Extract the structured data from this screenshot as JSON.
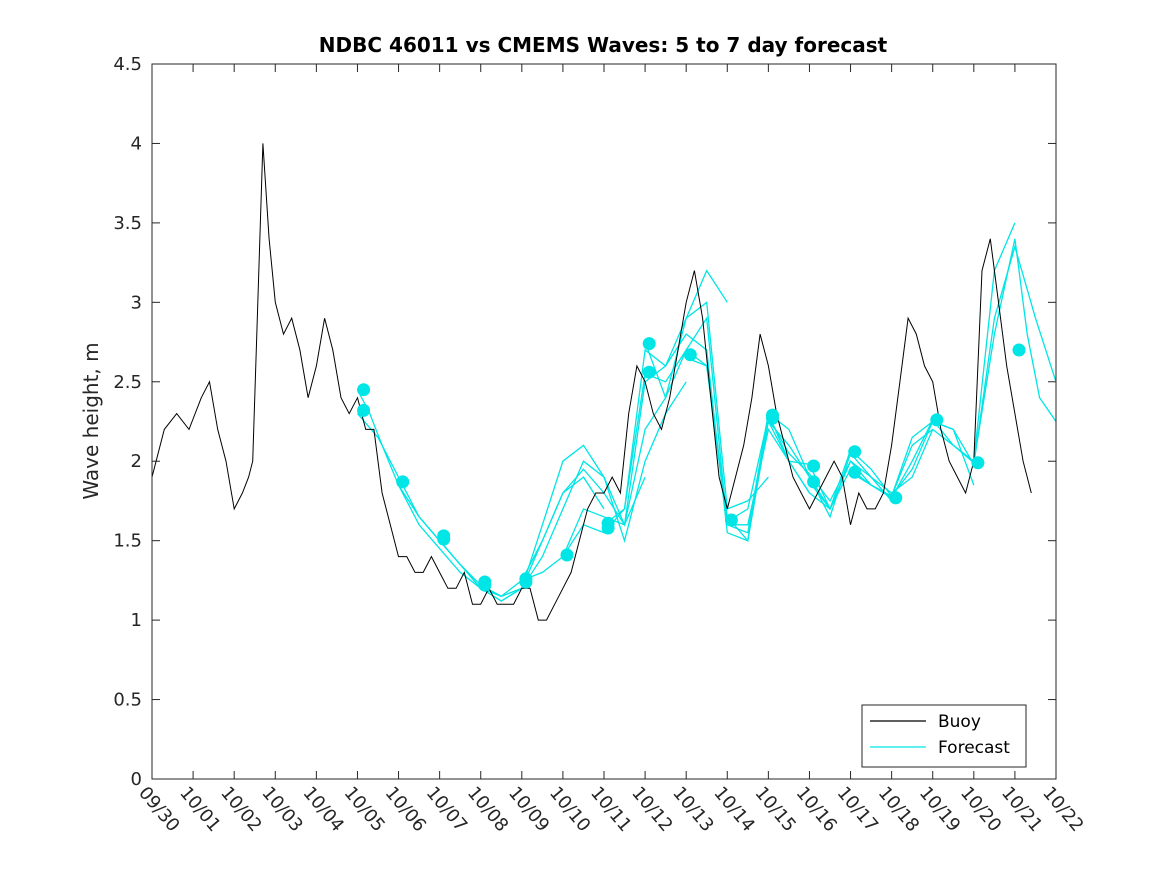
{
  "chart_data": {
    "type": "line",
    "title": "NDBC 46011 vs CMEMS Waves: 5 to 7 day forecast",
    "xlabel": "",
    "ylabel": "Wave height, m",
    "xlim": [
      0,
      22
    ],
    "ylim": [
      0,
      4.5
    ],
    "x_tick_labels": [
      "09/30",
      "10/01",
      "10/02",
      "10/03",
      "10/04",
      "10/05",
      "10/06",
      "10/07",
      "10/08",
      "10/09",
      "10/10",
      "10/11",
      "10/12",
      "10/13",
      "10/14",
      "10/15",
      "10/16",
      "10/17",
      "10/18",
      "10/19",
      "10/20",
      "10/21",
      "10/22"
    ],
    "y_ticks": [
      0,
      0.5,
      1,
      1.5,
      2,
      2.5,
      3,
      3.5,
      4,
      4.5
    ],
    "y_tick_labels": [
      "0",
      "0.5",
      "1",
      "1.5",
      "2",
      "2.5",
      "3",
      "3.5",
      "4",
      "4.5"
    ],
    "legend": {
      "position": "bottom-right",
      "entries": [
        "Buoy",
        "Forecast"
      ]
    },
    "colors": {
      "buoy": "#000000",
      "forecast": "#00e5e5"
    },
    "buoy": {
      "name": "Buoy",
      "x": [
        0,
        0.3,
        0.6,
        0.9,
        1.2,
        1.4,
        1.6,
        1.8,
        2.0,
        2.2,
        2.35,
        2.45,
        2.55,
        2.7,
        2.85,
        3.0,
        3.2,
        3.4,
        3.6,
        3.8,
        4.0,
        4.2,
        4.4,
        4.6,
        4.8,
        5.0,
        5.2,
        5.4,
        5.6,
        5.8,
        6.0,
        6.2,
        6.4,
        6.6,
        6.8,
        7.0,
        7.2,
        7.4,
        7.6,
        7.8,
        8.0,
        8.2,
        8.4,
        8.6,
        8.8,
        9.0,
        9.2,
        9.4,
        9.6,
        9.8,
        10.0,
        10.2,
        10.4,
        10.6,
        10.8,
        11.0,
        11.2,
        11.4,
        11.6,
        11.8,
        12.0,
        12.2,
        12.4,
        12.6,
        12.8,
        13.0,
        13.2,
        13.4,
        13.6,
        13.8,
        14.0,
        14.2,
        14.4,
        14.6,
        14.8,
        15.0,
        15.2,
        15.4,
        15.6,
        15.8,
        16.0,
        16.2,
        16.4,
        16.6,
        16.8,
        17.0,
        17.2,
        17.4,
        17.6,
        17.8,
        18.0,
        18.2,
        18.4,
        18.6,
        18.8,
        19.0,
        19.2,
        19.4,
        19.6,
        19.8,
        20.0,
        20.2,
        20.4,
        20.6,
        20.8,
        21.0,
        21.2,
        21.4
      ],
      "values": [
        1.9,
        2.2,
        2.3,
        2.2,
        2.4,
        2.5,
        2.2,
        2.0,
        1.7,
        1.8,
        1.9,
        2.0,
        2.8,
        4.0,
        3.4,
        3.0,
        2.8,
        2.9,
        2.7,
        2.4,
        2.6,
        2.9,
        2.7,
        2.4,
        2.3,
        2.4,
        2.2,
        2.2,
        1.8,
        1.6,
        1.4,
        1.4,
        1.3,
        1.3,
        1.4,
        1.3,
        1.2,
        1.2,
        1.3,
        1.1,
        1.1,
        1.2,
        1.1,
        1.1,
        1.1,
        1.2,
        1.2,
        1.0,
        1.0,
        1.1,
        1.2,
        1.3,
        1.5,
        1.7,
        1.8,
        1.8,
        1.9,
        1.8,
        2.3,
        2.6,
        2.5,
        2.3,
        2.2,
        2.4,
        2.7,
        3.0,
        3.2,
        2.9,
        2.4,
        1.9,
        1.7,
        1.9,
        2.1,
        2.4,
        2.8,
        2.6,
        2.3,
        2.1,
        1.9,
        1.8,
        1.7,
        1.8,
        1.9,
        2.0,
        1.9,
        1.6,
        1.8,
        1.7,
        1.7,
        1.8,
        2.1,
        2.5,
        2.9,
        2.8,
        2.6,
        2.5,
        2.2,
        2.0,
        1.9,
        1.8,
        2.0,
        3.2,
        3.4,
        3.0,
        2.6,
        2.3,
        2.0,
        1.8
      ]
    },
    "forecast_lines": [
      {
        "x": [
          5.0,
          5.3,
          5.6,
          6.0,
          6.5,
          7.0,
          7.5,
          8.0,
          8.5,
          9.0
        ],
        "values": [
          2.45,
          2.3,
          2.1,
          1.85,
          1.6,
          1.45,
          1.3,
          1.2,
          1.15,
          1.2
        ]
      },
      {
        "x": [
          5.0,
          5.5,
          6.0,
          6.5,
          7.0,
          7.5,
          8.0,
          8.5,
          9.0,
          9.5,
          10.0,
          10.5,
          11.0
        ],
        "values": [
          2.3,
          2.15,
          1.9,
          1.65,
          1.5,
          1.35,
          1.22,
          1.15,
          1.2,
          1.5,
          1.8,
          1.9,
          1.7
        ]
      },
      {
        "x": [
          6.0,
          6.5,
          7.0,
          7.5,
          8.0,
          8.5,
          9.0,
          9.5,
          10.0,
          10.5,
          11.0,
          11.5,
          12.0
        ],
        "values": [
          1.85,
          1.65,
          1.5,
          1.35,
          1.2,
          1.12,
          1.2,
          1.6,
          2.0,
          2.1,
          1.9,
          1.6,
          1.9
        ]
      },
      {
        "x": [
          7.0,
          7.5,
          8.0,
          8.5,
          9.0,
          9.5,
          10.0,
          10.5,
          11.0,
          11.5,
          12.0,
          12.5,
          13.0
        ],
        "values": [
          1.5,
          1.35,
          1.2,
          1.12,
          1.2,
          1.4,
          1.7,
          2.0,
          1.9,
          1.5,
          2.0,
          2.3,
          2.5
        ]
      },
      {
        "x": [
          8.0,
          8.5,
          9.0,
          9.5,
          10.0,
          10.5,
          11.0,
          11.5,
          12.0,
          12.5,
          13.0,
          13.5,
          14.0
        ],
        "values": [
          1.22,
          1.15,
          1.25,
          1.5,
          1.8,
          1.95,
          1.8,
          1.6,
          2.2,
          2.4,
          2.9,
          3.2,
          3.0
        ]
      },
      {
        "x": [
          9.0,
          9.5,
          10.0,
          10.5,
          11.0,
          11.5,
          12.0,
          12.5,
          13.0,
          13.5,
          14.0,
          14.5,
          15.0
        ],
        "values": [
          1.25,
          1.3,
          1.4,
          1.7,
          1.65,
          1.6,
          2.5,
          2.6,
          2.9,
          3.0,
          1.7,
          1.75,
          1.9
        ]
      },
      {
        "x": [
          10.0,
          10.5,
          11.0,
          11.5,
          12.0,
          12.5,
          13.0,
          13.5,
          14.0,
          14.5,
          15.0,
          15.5,
          16.0
        ],
        "values": [
          1.4,
          1.6,
          1.55,
          1.7,
          2.55,
          2.5,
          2.7,
          2.9,
          1.6,
          1.6,
          2.2,
          2.0,
          1.8
        ]
      },
      {
        "x": [
          11.0,
          11.5,
          12.0,
          12.5,
          13.0,
          13.5,
          14.0,
          14.5,
          15.0,
          15.5,
          16.0,
          16.5,
          17.0
        ],
        "values": [
          1.6,
          1.7,
          2.7,
          2.6,
          2.8,
          2.7,
          1.55,
          1.5,
          2.3,
          2.2,
          1.9,
          1.7,
          2.0
        ]
      },
      {
        "x": [
          12.0,
          12.5,
          13.0,
          13.5,
          14.0,
          14.5,
          15.0,
          15.5,
          16.0,
          16.5,
          17.0,
          17.5,
          18.0
        ],
        "values": [
          2.75,
          2.4,
          2.7,
          2.6,
          1.65,
          1.5,
          2.25,
          2.1,
          1.9,
          1.65,
          2.05,
          1.9,
          1.75
        ]
      },
      {
        "x": [
          13.0,
          13.5,
          14.0,
          14.5,
          15.0,
          15.5,
          16.0,
          16.5,
          17.0,
          17.5,
          18.0,
          18.5,
          19.0
        ],
        "values": [
          2.65,
          2.6,
          1.6,
          1.55,
          2.3,
          2.0,
          1.8,
          1.7,
          2.0,
          1.9,
          1.8,
          1.9,
          2.2
        ]
      },
      {
        "x": [
          14.0,
          14.5,
          15.0,
          15.5,
          16.0,
          16.5,
          17.0,
          17.5,
          18.0,
          18.5,
          19.0,
          19.5,
          20.0
        ],
        "values": [
          1.62,
          1.7,
          2.28,
          2.05,
          1.92,
          1.75,
          2.0,
          1.85,
          1.78,
          1.95,
          2.25,
          2.2,
          1.85
        ]
      },
      {
        "x": [
          15.0,
          15.5,
          16.0,
          16.5,
          17.0,
          17.5,
          18.0,
          18.5,
          19.0,
          19.5,
          20.0,
          20.5,
          21.0
        ],
        "values": [
          2.25,
          2.0,
          1.98,
          1.7,
          1.95,
          1.85,
          1.78,
          2.1,
          2.2,
          2.1,
          2.0,
          3.2,
          3.5
        ]
      },
      {
        "x": [
          16.0,
          16.5,
          17.0,
          17.5,
          18.0,
          18.5,
          19.0,
          19.5,
          20.0,
          20.5,
          21.0,
          21.5,
          22.0
        ],
        "values": [
          1.87,
          1.7,
          2.07,
          1.95,
          1.78,
          2.15,
          2.25,
          2.2,
          1.98,
          2.9,
          3.35,
          2.9,
          2.5
        ]
      },
      {
        "x": [
          17.0,
          17.5,
          18.0,
          18.5,
          19.0,
          19.5,
          20.0,
          20.5,
          21.0,
          21.3,
          21.6,
          22.0
        ],
        "values": [
          1.93,
          1.85,
          1.77,
          2.0,
          2.26,
          2.1,
          1.99,
          2.8,
          3.4,
          2.8,
          2.4,
          2.25
        ]
      }
    ],
    "forecast_points": {
      "x": [
        5.15,
        5.15,
        6.1,
        7.1,
        7.1,
        8.1,
        8.1,
        9.1,
        9.1,
        10.1,
        11.1,
        11.1,
        12.1,
        12.1,
        13.1,
        14.1,
        15.1,
        15.1,
        16.1,
        16.1,
        17.1,
        17.1,
        18.1,
        18.1,
        19.1,
        20.1,
        21.1
      ],
      "values": [
        2.45,
        2.32,
        1.87,
        1.53,
        1.51,
        1.24,
        1.22,
        1.26,
        1.24,
        1.41,
        1.58,
        1.61,
        2.74,
        2.56,
        2.67,
        1.63,
        2.29,
        2.27,
        1.97,
        1.87,
        2.06,
        1.93,
        1.77,
        1.77,
        2.26,
        1.99,
        2.7
      ]
    }
  }
}
